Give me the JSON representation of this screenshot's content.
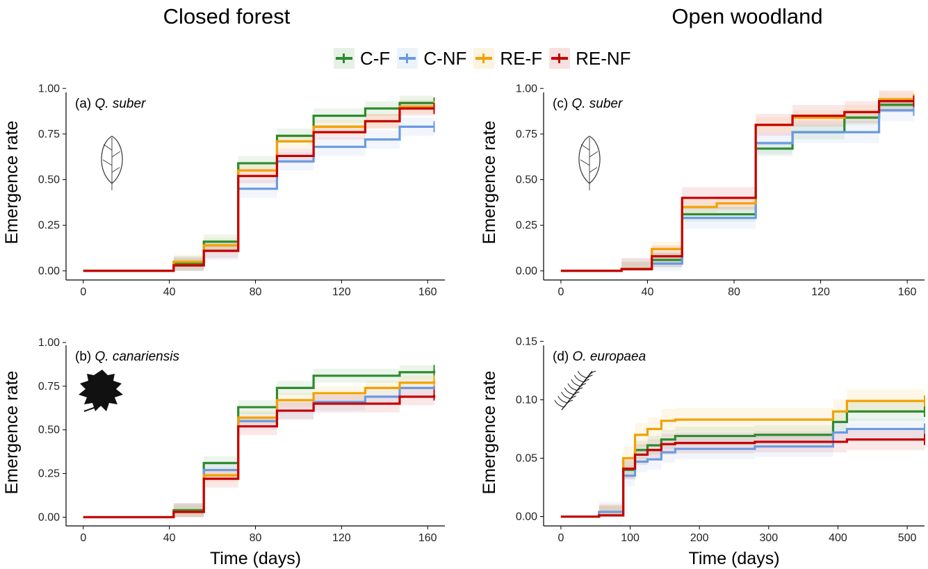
{
  "titles": {
    "left": "Closed forest",
    "right": "Open woodland"
  },
  "legend": [
    {
      "label": "C-F",
      "color": "#2e8b2e"
    },
    {
      "label": "C-NF",
      "color": "#6a9ae0"
    },
    {
      "label": "RE-F",
      "color": "#f2a100"
    },
    {
      "label": "RE-NF",
      "color": "#c40000"
    }
  ],
  "chart_data": [
    {
      "type": "line",
      "step": true,
      "panel_label": "(a)",
      "species": "Q. suber",
      "xlabel": "",
      "ylabel": "Emergence rate",
      "xlim": [
        -8,
        168
      ],
      "ylim": [
        -0.05,
        1.02
      ],
      "xticks": [
        0,
        40,
        80,
        120,
        160
      ],
      "yticks": [
        0,
        0.25,
        0.5,
        0.75,
        1.0
      ],
      "ytick_labels": [
        "0.00",
        "0.25",
        "0.50",
        "0.75",
        "1.00"
      ],
      "icon": "oak-leaf-outline-icon",
      "series": [
        {
          "name": "C-F",
          "x": [
            0,
            42,
            56,
            72,
            90,
            107,
            131,
            147,
            163
          ],
          "y": [
            0,
            0.04,
            0.16,
            0.59,
            0.74,
            0.85,
            0.89,
            0.92,
            0.92
          ],
          "band": 0.04
        },
        {
          "name": "C-NF",
          "x": [
            0,
            42,
            56,
            72,
            90,
            107,
            131,
            147,
            163
          ],
          "y": [
            0,
            0.03,
            0.11,
            0.45,
            0.6,
            0.68,
            0.72,
            0.79,
            0.79
          ],
          "band": 0.05
        },
        {
          "name": "RE-F",
          "x": [
            0,
            42,
            56,
            72,
            90,
            107,
            131,
            147,
            163
          ],
          "y": [
            0,
            0.05,
            0.14,
            0.55,
            0.71,
            0.79,
            0.82,
            0.9,
            0.9
          ],
          "band": 0.04
        },
        {
          "name": "RE-NF",
          "x": [
            0,
            42,
            56,
            72,
            90,
            107,
            131,
            147,
            163
          ],
          "y": [
            0,
            0.03,
            0.11,
            0.52,
            0.63,
            0.76,
            0.82,
            0.89,
            0.89
          ],
          "band": 0.04
        }
      ]
    },
    {
      "type": "line",
      "step": true,
      "panel_label": "(b)",
      "species": "Q. canariensis",
      "xlabel": "Time (days)",
      "ylabel": "Emergence rate",
      "xlim": [
        -8,
        168
      ],
      "ylim": [
        -0.05,
        1.02
      ],
      "xticks": [
        0,
        40,
        80,
        120,
        160
      ],
      "yticks": [
        0,
        0.25,
        0.5,
        0.75,
        1.0
      ],
      "ytick_labels": [
        "0.00",
        "0.25",
        "0.50",
        "0.75",
        "1.00"
      ],
      "icon": "oak-leaf-silhouette-icon",
      "series": [
        {
          "name": "C-F",
          "x": [
            0,
            42,
            56,
            72,
            90,
            107,
            131,
            147,
            163
          ],
          "y": [
            0,
            0.04,
            0.31,
            0.63,
            0.74,
            0.81,
            0.81,
            0.83,
            0.84
          ],
          "band": 0.04
        },
        {
          "name": "C-NF",
          "x": [
            0,
            42,
            56,
            72,
            90,
            107,
            131,
            147,
            163
          ],
          "y": [
            0,
            0.03,
            0.27,
            0.55,
            0.61,
            0.66,
            0.69,
            0.74,
            0.75
          ],
          "band": 0.05
        },
        {
          "name": "RE-F",
          "x": [
            0,
            42,
            56,
            72,
            90,
            107,
            131,
            147,
            163
          ],
          "y": [
            0,
            0.03,
            0.24,
            0.57,
            0.67,
            0.71,
            0.74,
            0.77,
            0.78
          ],
          "band": 0.04
        },
        {
          "name": "RE-NF",
          "x": [
            0,
            42,
            56,
            72,
            90,
            107,
            131,
            147,
            163
          ],
          "y": [
            0,
            0.03,
            0.22,
            0.52,
            0.61,
            0.65,
            0.65,
            0.69,
            0.7
          ],
          "band": 0.05
        }
      ]
    },
    {
      "type": "line",
      "step": true,
      "panel_label": "(c)",
      "species": "Q. suber",
      "xlabel": "",
      "ylabel": "Emergence rate",
      "xlim": [
        -8,
        168
      ],
      "ylim": [
        -0.05,
        1.02
      ],
      "xticks": [
        0,
        40,
        80,
        120,
        160
      ],
      "yticks": [
        0,
        0.25,
        0.5,
        0.75,
        1.0
      ],
      "ytick_labels": [
        "0.00",
        "0.25",
        "0.50",
        "0.75",
        "1.00"
      ],
      "icon": "oak-leaf-outline-icon",
      "series": [
        {
          "name": "C-F",
          "x": [
            0,
            28,
            42,
            56,
            90,
            107,
            131,
            147,
            163
          ],
          "y": [
            0,
            0.01,
            0.06,
            0.31,
            0.67,
            0.76,
            0.84,
            0.91,
            0.91
          ],
          "band": 0.04
        },
        {
          "name": "C-NF",
          "x": [
            0,
            28,
            42,
            56,
            90,
            107,
            131,
            147,
            163
          ],
          "y": [
            0,
            0.01,
            0.04,
            0.29,
            0.7,
            0.76,
            0.76,
            0.88,
            0.88
          ],
          "band": 0.06
        },
        {
          "name": "RE-F",
          "x": [
            0,
            28,
            42,
            56,
            72,
            90,
            107,
            131,
            147,
            163
          ],
          "y": [
            0,
            0.01,
            0.12,
            0.35,
            0.37,
            0.8,
            0.84,
            0.87,
            0.94,
            0.94
          ],
          "band": 0.04
        },
        {
          "name": "RE-NF",
          "x": [
            0,
            28,
            42,
            56,
            90,
            107,
            131,
            147,
            163
          ],
          "y": [
            0,
            0.01,
            0.08,
            0.4,
            0.8,
            0.85,
            0.87,
            0.93,
            0.93
          ],
          "band": 0.06
        }
      ]
    },
    {
      "type": "line",
      "step": true,
      "panel_label": "(d)",
      "species": "O. europaea",
      "xlabel": "Time (days)",
      "ylabel": "Emergence rate",
      "xlim": [
        -25,
        525
      ],
      "ylim": [
        -0.008,
        0.152
      ],
      "xticks": [
        0,
        100,
        200,
        300,
        400,
        500
      ],
      "yticks": [
        0,
        0.05,
        0.1,
        0.15
      ],
      "ytick_labels": [
        "0.00",
        "0.05",
        "0.10",
        "0.15"
      ],
      "icon": "olive-branch-icon",
      "series": [
        {
          "name": "C-F",
          "x": [
            0,
            55,
            90,
            107,
            125,
            145,
            165,
            280,
            393,
            413,
            525
          ],
          "y": [
            0,
            0.001,
            0.04,
            0.057,
            0.061,
            0.066,
            0.069,
            0.07,
            0.081,
            0.09,
            0.09
          ],
          "band": 0.008
        },
        {
          "name": "C-NF",
          "x": [
            0,
            55,
            90,
            107,
            125,
            145,
            165,
            280,
            393,
            413,
            525
          ],
          "y": [
            0,
            0.004,
            0.035,
            0.047,
            0.049,
            0.055,
            0.058,
            0.06,
            0.072,
            0.075,
            0.075
          ],
          "band": 0.009
        },
        {
          "name": "RE-F",
          "x": [
            0,
            55,
            90,
            107,
            125,
            145,
            165,
            280,
            393,
            413,
            525
          ],
          "y": [
            0,
            0.001,
            0.05,
            0.07,
            0.075,
            0.082,
            0.083,
            0.083,
            0.09,
            0.099,
            0.099
          ],
          "band": 0.01
        },
        {
          "name": "RE-NF",
          "x": [
            0,
            55,
            90,
            107,
            125,
            145,
            165,
            280,
            413,
            525
          ],
          "y": [
            0,
            0.001,
            0.041,
            0.053,
            0.057,
            0.062,
            0.063,
            0.064,
            0.066,
            0.066
          ],
          "band": 0.009
        }
      ]
    }
  ]
}
